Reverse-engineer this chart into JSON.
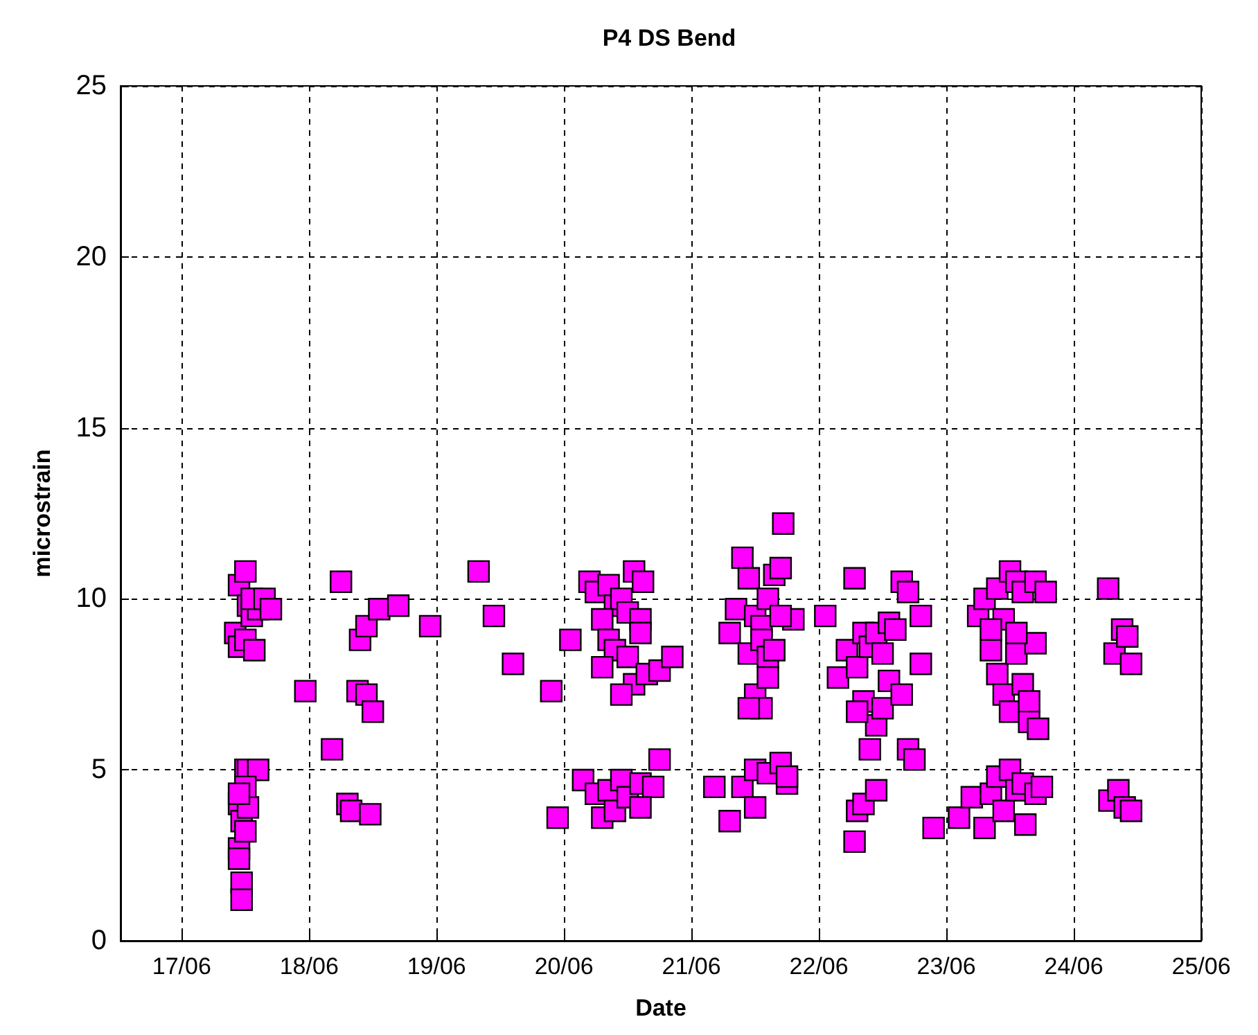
{
  "chart_data": {
    "type": "scatter",
    "title": "P4 DS Bend",
    "xlabel": "Date",
    "ylabel": "microstrain",
    "marker": "square",
    "grid": true,
    "xlim": [
      "--06-16T12:29",
      "--06-25"
    ],
    "ylim": [
      0,
      25
    ],
    "xticks": [
      {
        "value": "--06-17",
        "label": "17/06"
      },
      {
        "value": "--06-18",
        "label": "18/06"
      },
      {
        "value": "--06-19",
        "label": "19/06"
      },
      {
        "value": "--06-20",
        "label": "20/06"
      },
      {
        "value": "--06-21",
        "label": "21/06"
      },
      {
        "value": "--06-22",
        "label": "22/06"
      },
      {
        "value": "--06-23",
        "label": "23/06"
      },
      {
        "value": "--06-24",
        "label": "24/06"
      },
      {
        "value": "--06-25",
        "label": "25/06"
      }
    ],
    "yticks": [
      0,
      5,
      10,
      15,
      20,
      25
    ],
    "series": [
      {
        "color": "#ff00ff",
        "x": [
          "--06-17T10:05",
          "--06-17T10:48",
          "--06-17T12:00",
          "--06-17T12:29",
          "--06-17T13:12",
          "--06-17T14:24",
          "--06-17T13:12",
          "--06-17T10:48",
          "--06-17T12:00",
          "--06-17T13:41",
          "--06-17T15:36",
          "--06-17T16:48",
          "--06-17T10:48",
          "--06-17T11:17",
          "--06-17T12:00",
          "--06-17T12:29",
          "--06-17T14:24",
          "--06-17T10:48",
          "--06-17T10:48",
          "--06-17T11:17",
          "--06-17T11:17",
          "--06-17T12:00",
          "--06-17T12:29",
          "--06-17T12:00",
          "--06-17T10:48",
          "--06-17T23:17",
          "--06-18T04:19",
          "--06-18T06:00",
          "--06-18T07:12",
          "--06-18T07:55",
          "--06-18T09:07",
          "--06-18T09:36",
          "--06-18T10:48",
          "--06-18T10:48",
          "--06-18T11:31",
          "--06-18T12:00",
          "--06-18T13:12",
          "--06-18T16:48",
          "--06-18T22:48",
          "--06-19T07:55",
          "--06-19T10:48",
          "--06-19T14:24",
          "--06-19T21:36",
          "--06-19T22:48",
          "--06-20T01:12",
          "--06-20T04:48",
          "--06-20T06:00",
          "--06-20T08:24",
          "--06-20T09:36",
          "--06-20T10:48",
          "--06-20T13:12",
          "--06-20T14:53",
          "--06-20T07:12",
          "--06-20T08:24",
          "--06-20T12:00",
          "--06-20T14:24",
          "--06-20T09:36",
          "--06-20T12:00",
          "--06-20T13:12",
          "--06-20T10:48",
          "--06-20T15:36",
          "--06-20T18:00",
          "--06-20T20:24",
          "--06-20T14:24",
          "--06-20T07:12",
          "--06-20T03:36",
          "--06-20T06:00",
          "--06-20T08:24",
          "--06-20T07:12",
          "--06-20T09:36",
          "--06-20T10:48",
          "--06-20T12:00",
          "--06-20T14:24",
          "--06-20T16:48",
          "--06-20T18:00",
          "--06-20T14:24",
          "--06-21T04:19",
          "--06-21T07:12",
          "--06-21T09:36",
          "--06-21T12:00",
          "--06-21T12:00",
          "--06-21T14:24",
          "--06-21T16:48",
          "--06-21T18:00",
          "--06-21T18:00",
          "--06-21T07:12",
          "--06-21T08:24",
          "--06-21T09:36",
          "--06-21T10:48",
          "--06-21T12:00",
          "--06-21T13:12",
          "--06-21T14:24",
          "--06-21T15:36",
          "--06-21T17:17",
          "--06-21T16:48",
          "--06-21T19:12",
          "--06-21T10:48",
          "--06-21T13:12",
          "--06-21T14:24",
          "--06-21T12:00",
          "--06-21T13:12",
          "--06-21T10:48",
          "--06-21T15:36",
          "--06-21T14:24",
          "--06-21T16:48",
          "--06-22T01:12",
          "--06-22T03:36",
          "--06-22T05:17",
          "--06-22T06:43",
          "--06-22T07:12",
          "--06-22T08:24",
          "--06-22T09:36",
          "--06-22T10:48",
          "--06-22T12:00",
          "--06-22T13:12",
          "--06-22T14:24",
          "--06-22T15:36",
          "--06-22T16:48",
          "--06-22T08:24",
          "--06-22T10:48",
          "--06-22T09:36",
          "--06-22T12:00",
          "--06-22T13:12",
          "--06-22T15:36",
          "--06-22T16:48",
          "--06-22T18:00",
          "--06-22T19:12",
          "--06-22T19:12",
          "--06-22T07:12",
          "--06-22T06:43",
          "--06-22T07:12",
          "--06-22T08:24",
          "--06-22T10:48",
          "--06-22T21:36",
          "--06-23T02:24",
          "--06-23T04:48",
          "--06-23T07:12",
          "--06-23T08:24",
          "--06-23T09:36",
          "--06-23T10:48",
          "--06-23T12:00",
          "--06-23T13:12",
          "--06-23T14:24",
          "--06-23T14:53",
          "--06-23T16:48",
          "--06-23T18:00",
          "--06-23T06:00",
          "--06-23T07:12",
          "--06-23T08:24",
          "--06-23T09:36",
          "--06-23T10:48",
          "--06-23T12:00",
          "--06-23T13:12",
          "--06-23T14:24",
          "--06-23T16:48",
          "--06-23T18:43",
          "--06-23T09:36",
          "--06-23T10:48",
          "--06-23T12:00",
          "--06-23T13:12",
          "--06-23T14:24",
          "--06-23T15:36",
          "--06-23T15:36",
          "--06-23T16:48",
          "--06-23T08:24",
          "--06-23T13:12",
          "--06-23T17:17",
          "--06-24T06:29",
          "--06-24T07:41",
          "--06-24T09:07",
          "--06-24T10:05",
          "--06-24T10:48",
          "--06-24T06:43",
          "--06-24T08:24",
          "--06-24T09:36",
          "--06-24T10:48"
        ],
        "values": [
          9.0,
          10.4,
          10.8,
          9.8,
          9.5,
          9.7,
          10.0,
          8.6,
          8.8,
          8.5,
          10.0,
          9.7,
          4.0,
          3.5,
          5.0,
          5.0,
          5.0,
          2.7,
          2.4,
          1.7,
          1.2,
          3.2,
          3.9,
          4.5,
          4.3,
          7.3,
          5.6,
          10.5,
          4.0,
          3.8,
          7.3,
          8.8,
          9.2,
          7.2,
          3.7,
          6.7,
          9.7,
          9.8,
          9.2,
          10.8,
          9.5,
          8.1,
          7.3,
          3.6,
          8.8,
          10.5,
          10.2,
          10.4,
          9.8,
          10.0,
          10.8,
          10.5,
          9.4,
          8.8,
          9.6,
          9.4,
          8.5,
          8.3,
          7.5,
          7.2,
          7.8,
          7.9,
          8.3,
          9.0,
          8.0,
          4.7,
          4.3,
          4.4,
          3.6,
          3.8,
          4.7,
          4.2,
          4.6,
          4.5,
          5.3,
          3.9,
          4.5,
          3.5,
          4.5,
          5.0,
          3.9,
          4.9,
          5.2,
          4.6,
          4.8,
          9.0,
          9.7,
          11.2,
          10.6,
          9.5,
          9.2,
          10.0,
          10.7,
          12.2,
          10.9,
          9.4,
          8.4,
          8.8,
          8.3,
          7.2,
          6.8,
          6.8,
          8.5,
          7.7,
          9.5,
          9.5,
          7.7,
          8.5,
          10.6,
          8.0,
          9.0,
          8.6,
          9.0,
          8.4,
          9.3,
          9.1,
          10.5,
          10.2,
          7.0,
          6.3,
          5.6,
          6.8,
          7.6,
          7.2,
          5.6,
          5.3,
          9.5,
          8.1,
          6.7,
          2.9,
          3.8,
          4.0,
          4.4,
          3.3,
          3.6,
          4.2,
          3.3,
          4.3,
          4.8,
          3.8,
          5.0,
          4.4,
          4.6,
          3.4,
          4.3,
          4.5,
          9.5,
          10.0,
          8.5,
          10.3,
          9.4,
          10.8,
          10.5,
          10.2,
          10.5,
          10.2,
          7.8,
          7.2,
          6.7,
          8.4,
          7.5,
          7.0,
          6.4,
          8.7,
          9.1,
          9.0,
          6.2,
          10.3,
          8.4,
          9.1,
          8.9,
          8.1,
          4.1,
          4.4,
          3.9,
          3.8
        ]
      }
    ]
  }
}
